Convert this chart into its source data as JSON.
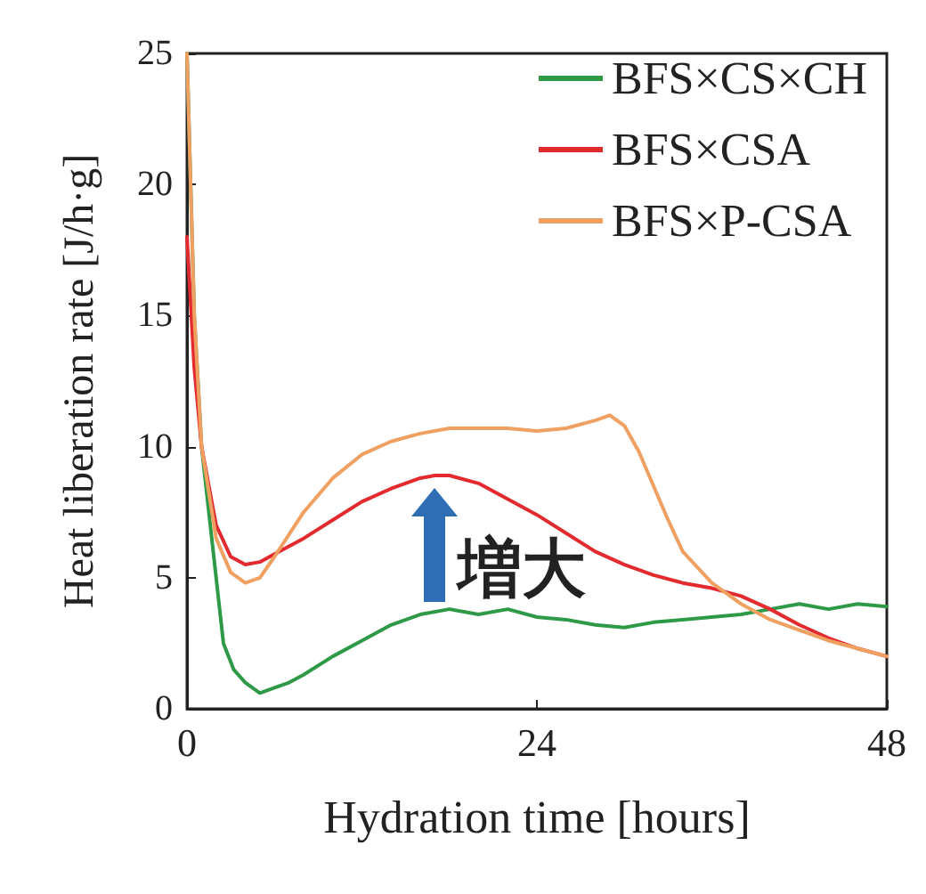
{
  "chart_data": {
    "type": "line",
    "xlabel": "Hydration time [hours]",
    "ylabel": "Heat liberation rate [J/h·g]",
    "xlim": [
      0,
      48
    ],
    "xticks": [
      0,
      24,
      48
    ],
    "ylim": [
      0,
      25
    ],
    "yticks": [
      0,
      5,
      10,
      15,
      20,
      25
    ],
    "grid": false,
    "legend": "top right",
    "marker": "none",
    "line_style": "solid",
    "series": [
      {
        "name": "BFS×CS×CH",
        "color": "#2e9a48",
        "x": [
          0,
          0.5,
          1,
          1.8,
          2.5,
          3.2,
          4,
          5,
          6,
          7,
          8,
          10,
          12,
          14,
          16,
          18,
          20,
          22,
          24,
          26,
          28,
          30,
          32,
          34,
          36,
          38,
          40,
          42,
          44,
          46,
          48
        ],
        "values": [
          25,
          15,
          10,
          6,
          2.5,
          1.5,
          1.0,
          0.6,
          0.8,
          1.0,
          1.3,
          2.0,
          2.6,
          3.2,
          3.6,
          3.8,
          3.6,
          3.8,
          3.5,
          3.4,
          3.2,
          3.1,
          3.3,
          3.4,
          3.5,
          3.6,
          3.8,
          4.0,
          3.8,
          4.0,
          3.9
        ]
      },
      {
        "name": "BFS×CSA",
        "color": "#e32b2f",
        "x": [
          0,
          0.5,
          1,
          2,
          3,
          4,
          5,
          6,
          8,
          10,
          12,
          14,
          16,
          17,
          18,
          20,
          22,
          24,
          26,
          28,
          30,
          32,
          34,
          36,
          38,
          40,
          42,
          44,
          46,
          48
        ],
        "values": [
          18,
          13,
          10,
          7,
          5.8,
          5.5,
          5.6,
          5.9,
          6.5,
          7.2,
          7.9,
          8.4,
          8.8,
          8.9,
          8.9,
          8.6,
          8.0,
          7.4,
          6.7,
          6.0,
          5.5,
          5.1,
          4.8,
          4.6,
          4.3,
          3.8,
          3.2,
          2.7,
          2.3,
          2.0
        ]
      },
      {
        "name": "BFS×P-CSA",
        "color": "#f0a060",
        "x": [
          0,
          0.5,
          1,
          2,
          3,
          4,
          5,
          6,
          8,
          10,
          12,
          14,
          16,
          18,
          20,
          22,
          24,
          26,
          28,
          29,
          30,
          31,
          32,
          33,
          34,
          36,
          38,
          40,
          42,
          44,
          46,
          48
        ],
        "values": [
          25,
          15,
          10,
          6.5,
          5.2,
          4.8,
          5.0,
          5.8,
          7.5,
          8.8,
          9.7,
          10.2,
          10.5,
          10.7,
          10.7,
          10.7,
          10.6,
          10.7,
          11.0,
          11.2,
          10.8,
          9.8,
          8.5,
          7.2,
          6.0,
          4.8,
          4.0,
          3.4,
          3.0,
          2.6,
          2.3,
          2.0
        ]
      }
    ],
    "annotations": [
      "増大"
    ]
  }
}
